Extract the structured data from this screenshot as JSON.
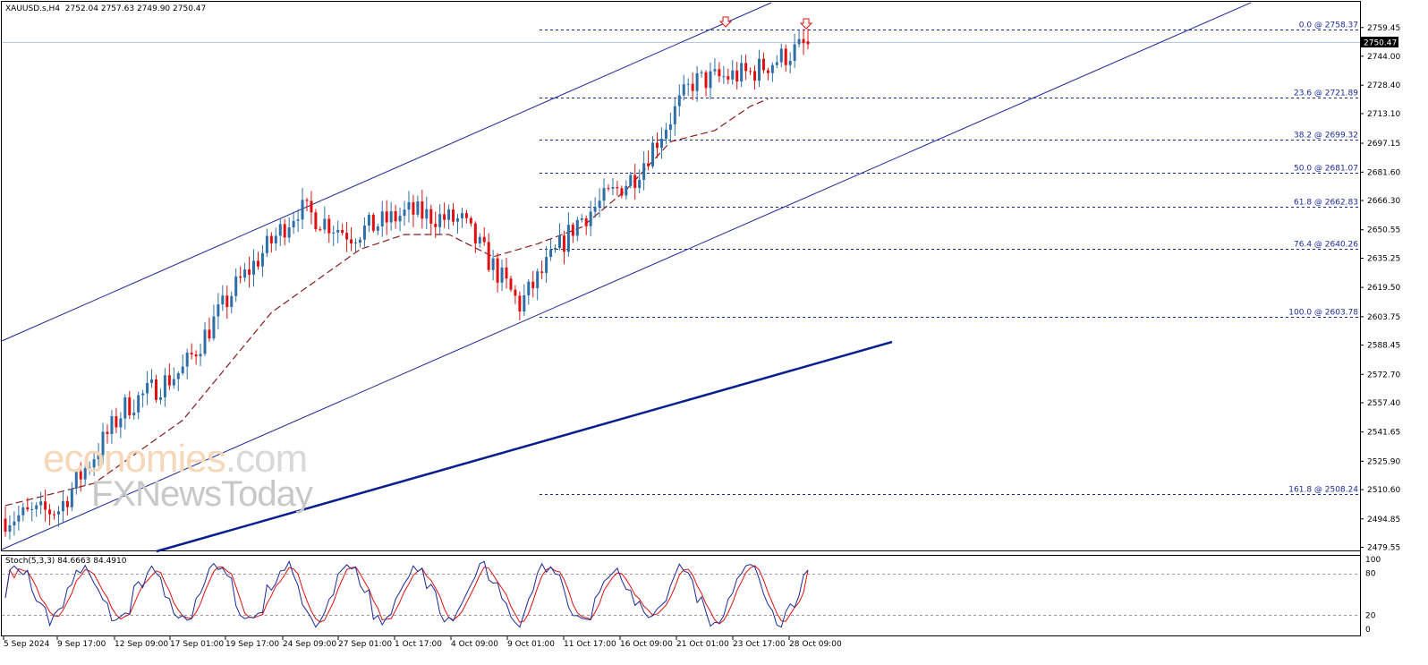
{
  "header": {
    "symbol": "XAUUSD.s,H4",
    "ohlc": "2752.04 2757.63 2749.90 2750.47"
  },
  "watermark": {
    "part1": "economies",
    "part2": ".com",
    "line2": "FXNewsToday",
    "part1_color": "#f6d7b8",
    "part2_color": "#d9d9d9"
  },
  "current_price": "2750.47",
  "stoch": {
    "label": "Stoch(5,3,3) 84.6663 84.4910",
    "levels": [
      "100",
      "80",
      "20",
      "0"
    ]
  },
  "price_axis": [
    "2759.45",
    "2744.00",
    "2728.40",
    "2713.10",
    "2697.15",
    "2681.60",
    "2666.30",
    "2650.55",
    "2635.25",
    "2619.50",
    "2603.75",
    "2588.45",
    "2572.70",
    "2557.40",
    "2541.65",
    "2525.90",
    "2510.60",
    "2494.85",
    "2479.55"
  ],
  "time_axis": [
    "5 Sep 2024",
    "9 Sep 17:00",
    "12 Sep 09:00",
    "17 Sep 01:00",
    "19 Sep 17:00",
    "24 Sep 09:00",
    "27 Sep 01:00",
    "1 Oct 17:00",
    "4 Oct 09:00",
    "9 Oct 01:00",
    "11 Oct 17:00",
    "16 Oct 09:00",
    "21 Oct 01:00",
    "23 Oct 17:00",
    "28 Oct 09:00"
  ],
  "fib_levels": [
    {
      "label": "0.0 @ 2758.37",
      "price": 2758.37
    },
    {
      "label": "23.6 @ 2721.89",
      "price": 2721.89
    },
    {
      "label": "38.2 @ 2699.32",
      "price": 2699.32
    },
    {
      "label": "50.0 @ 2681.07",
      "price": 2681.07
    },
    {
      "label": "61.8 @ 2662.83",
      "price": 2662.83
    },
    {
      "label": "76.4 @ 2640.26",
      "price": 2640.26
    },
    {
      "label": "100.0 @ 2603.78",
      "price": 2603.78
    },
    {
      "label": "161.8 @ 2508.24",
      "price": 2508.24
    }
  ],
  "colors": {
    "bull": "#2e6fa8",
    "bear": "#e01010",
    "ma": "#8b1a1a",
    "channel": "#1a2a9a",
    "trend": "#0a1f8f",
    "fib": "#1a2a9a",
    "stoch_main": "#1a2a9a",
    "stoch_signal": "#e01010"
  },
  "chart_data": {
    "type": "candlestick",
    "symbol": "XAUUSD.s",
    "timeframe": "H4",
    "ylim": [
      2479.55,
      2759.45
    ],
    "x_range": [
      "5 Sep 2024",
      "28 Oct 09:00"
    ],
    "grid": false,
    "series": [
      {
        "name": "XAUUSD.s,H4",
        "kind": "candles",
        "key_points": [
          {
            "time": "5 Sep 2024",
            "close": 2495
          },
          {
            "time": "9 Sep 17:00",
            "close": 2500
          },
          {
            "time": "12 Sep 09:00",
            "close": 2555
          },
          {
            "time": "17 Sep 01:00",
            "close": 2575
          },
          {
            "time": "19 Sep 17:00",
            "close": 2620
          },
          {
            "time": "24 Sep 09:00",
            "close": 2662
          },
          {
            "time": "27 Sep 01:00",
            "close": 2648
          },
          {
            "time": "1 Oct 17:00",
            "close": 2660
          },
          {
            "time": "4 Oct 09:00",
            "close": 2655
          },
          {
            "time": "9 Oct 01:00",
            "close": 2610
          },
          {
            "time": "11 Oct 17:00",
            "close": 2655
          },
          {
            "time": "16 Oct 09:00",
            "close": 2680
          },
          {
            "time": "21 Oct 01:00",
            "close": 2730
          },
          {
            "time": "23 Oct 17:00",
            "close": 2735
          },
          {
            "time": "28 Oct 09:00",
            "close": 2750.47
          }
        ],
        "last": {
          "open": 2752.04,
          "high": 2757.63,
          "low": 2749.9,
          "close": 2750.47
        }
      },
      {
        "name": "Moving average",
        "kind": "dashed line",
        "points": [
          [
            0,
            2502
          ],
          [
            20,
            2514
          ],
          [
            40,
            2548
          ],
          [
            60,
            2606
          ],
          [
            80,
            2640
          ],
          [
            90,
            2648
          ],
          [
            100,
            2648
          ],
          [
            110,
            2636
          ],
          [
            120,
            2643
          ],
          [
            130,
            2652
          ],
          [
            140,
            2672
          ],
          [
            150,
            2698
          ],
          [
            160,
            2704
          ],
          [
            168,
            2717
          ],
          [
            172,
            2721
          ]
        ]
      },
      {
        "name": "Stoch(5,3,3)",
        "kind": "oscillator",
        "main": 84.6663,
        "signal": 84.491,
        "levels": [
          80,
          20
        ]
      }
    ],
    "fibonacci": {
      "high": 2758.37,
      "low": 2603.78,
      "levels": [
        [
          0.0,
          2758.37
        ],
        [
          23.6,
          2721.89
        ],
        [
          38.2,
          2699.32
        ],
        [
          50.0,
          2681.07
        ],
        [
          61.8,
          2662.83
        ],
        [
          76.4,
          2640.26
        ],
        [
          100.0,
          2603.78
        ],
        [
          161.8,
          2508.24
        ]
      ]
    }
  }
}
